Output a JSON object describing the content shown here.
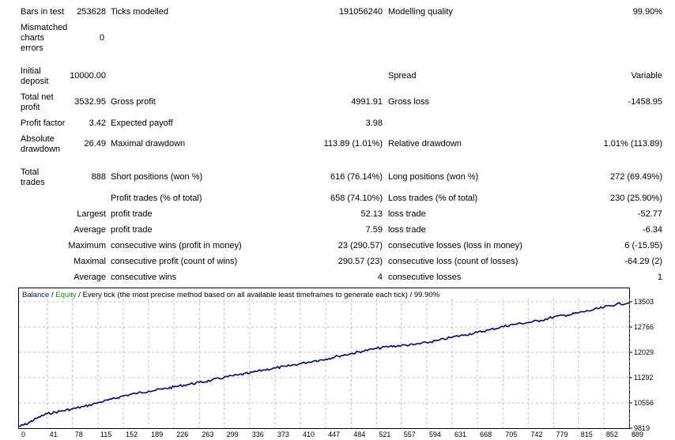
{
  "report": {
    "bars_in_test": {
      "label": "Bars in test",
      "value": "253628"
    },
    "ticks_modelled": {
      "label": "Ticks modelled",
      "value": "191056240"
    },
    "modelling_quality": {
      "label": "Modelling quality",
      "value": "99.90%"
    },
    "mismatched_errors": {
      "label": "Mismatched charts errors",
      "value": "0"
    },
    "initial_deposit": {
      "label": "Initial deposit",
      "value": "10000.00"
    },
    "spread": {
      "label": "Spread",
      "value": "Variable"
    },
    "total_net_profit": {
      "label": "Total net profit",
      "value": "3532.95"
    },
    "gross_profit": {
      "label": "Gross profit",
      "value": "4991.91"
    },
    "gross_loss": {
      "label": "Gross loss",
      "value": "-1458.95"
    },
    "profit_factor": {
      "label": "Profit factor",
      "value": "3.42"
    },
    "expected_payoff": {
      "label": "Expected payoff",
      "value": "3.98"
    },
    "absolute_drawdown": {
      "label": "Absolute drawdown",
      "value": "26.49"
    },
    "maximal_drawdown": {
      "label": "Maximal drawdown",
      "value": "113.89 (1.01%)"
    },
    "relative_drawdown": {
      "label": "Relative drawdown",
      "value": "1.01% (113.89)"
    },
    "total_trades": {
      "label": "Total trades",
      "value": "888"
    },
    "short_positions": {
      "label": "Short positions (won %)",
      "value": "616 (76.14%)"
    },
    "long_positions": {
      "label": "Long positions (won %)",
      "value": "272 (69.49%)"
    },
    "profit_trades": {
      "label": "Profit trades (% of total)",
      "value": "658 (74.10%)"
    },
    "loss_trades": {
      "label": "Loss trades (% of total)",
      "value": "230 (25.90%)"
    },
    "largest": {
      "prefix": "Largest",
      "profit_label": "profit trade",
      "profit_value": "52.13",
      "loss_label": "loss trade",
      "loss_value": "-52.77"
    },
    "average": {
      "prefix": "Average",
      "profit_label": "profit trade",
      "profit_value": "7.59",
      "loss_label": "loss trade",
      "loss_value": "-6.34"
    },
    "maximum": {
      "prefix": "Maximum",
      "profit_label": "consecutive wins (profit in money)",
      "profit_value": "23 (290.57)",
      "loss_label": "consecutive losses (loss in money)",
      "loss_value": "6 (-15.95)"
    },
    "maximal": {
      "prefix": "Maximal",
      "profit_label": "consecutive profit (count of wins)",
      "profit_value": "290.57 (23)",
      "loss_label": "consecutive loss (count of losses)",
      "loss_value": "-64.29 (2)"
    },
    "average_consec": {
      "prefix": "Average",
      "profit_label": "consecutive wins",
      "profit_value": "4",
      "loss_label": "consecutive losses",
      "loss_value": "1"
    }
  },
  "chart_caption": {
    "balance": "Balance",
    "sep": " / ",
    "equity": "Equity",
    "rest": " / Every tick (the most precise method based on all available least timeframes to generate each tick) / 99.90%"
  },
  "chart_data": {
    "type": "line",
    "xlabel": "",
    "ylabel": "",
    "x_ticks": [
      0,
      41,
      78,
      115,
      152,
      189,
      226,
      263,
      299,
      336,
      373,
      410,
      447,
      484,
      521,
      557,
      594,
      631,
      668,
      705,
      742,
      779,
      815,
      852,
      889
    ],
    "y_ticks": [
      9819,
      10556,
      11292,
      12029,
      12766,
      13503
    ],
    "ylim": [
      9819,
      13503
    ],
    "xlim": [
      0,
      889
    ],
    "grid": true,
    "series": [
      {
        "name": "Balance",
        "color": "#00008b",
        "x": [
          0,
          10,
          25,
          41,
          60,
          78,
          95,
          115,
          135,
          152,
          170,
          189,
          210,
          226,
          245,
          263,
          280,
          299,
          320,
          336,
          355,
          373,
          390,
          410,
          430,
          447,
          465,
          484,
          500,
          521,
          540,
          557,
          575,
          594,
          610,
          631,
          650,
          668,
          685,
          705,
          720,
          742,
          760,
          779,
          800,
          815,
          835,
          852,
          870,
          889
        ],
        "y": [
          9870,
          9930,
          10100,
          10240,
          10310,
          10380,
          10450,
          10560,
          10660,
          10760,
          10830,
          10900,
          10960,
          11020,
          11090,
          11150,
          11210,
          11300,
          11370,
          11420,
          11510,
          11570,
          11620,
          11700,
          11780,
          11830,
          11920,
          11990,
          12060,
          12140,
          12200,
          12230,
          12250,
          12310,
          12370,
          12470,
          12540,
          12610,
          12680,
          12780,
          12840,
          12900,
          12960,
          13060,
          13120,
          13180,
          13260,
          13340,
          13430,
          13470
        ]
      }
    ]
  }
}
